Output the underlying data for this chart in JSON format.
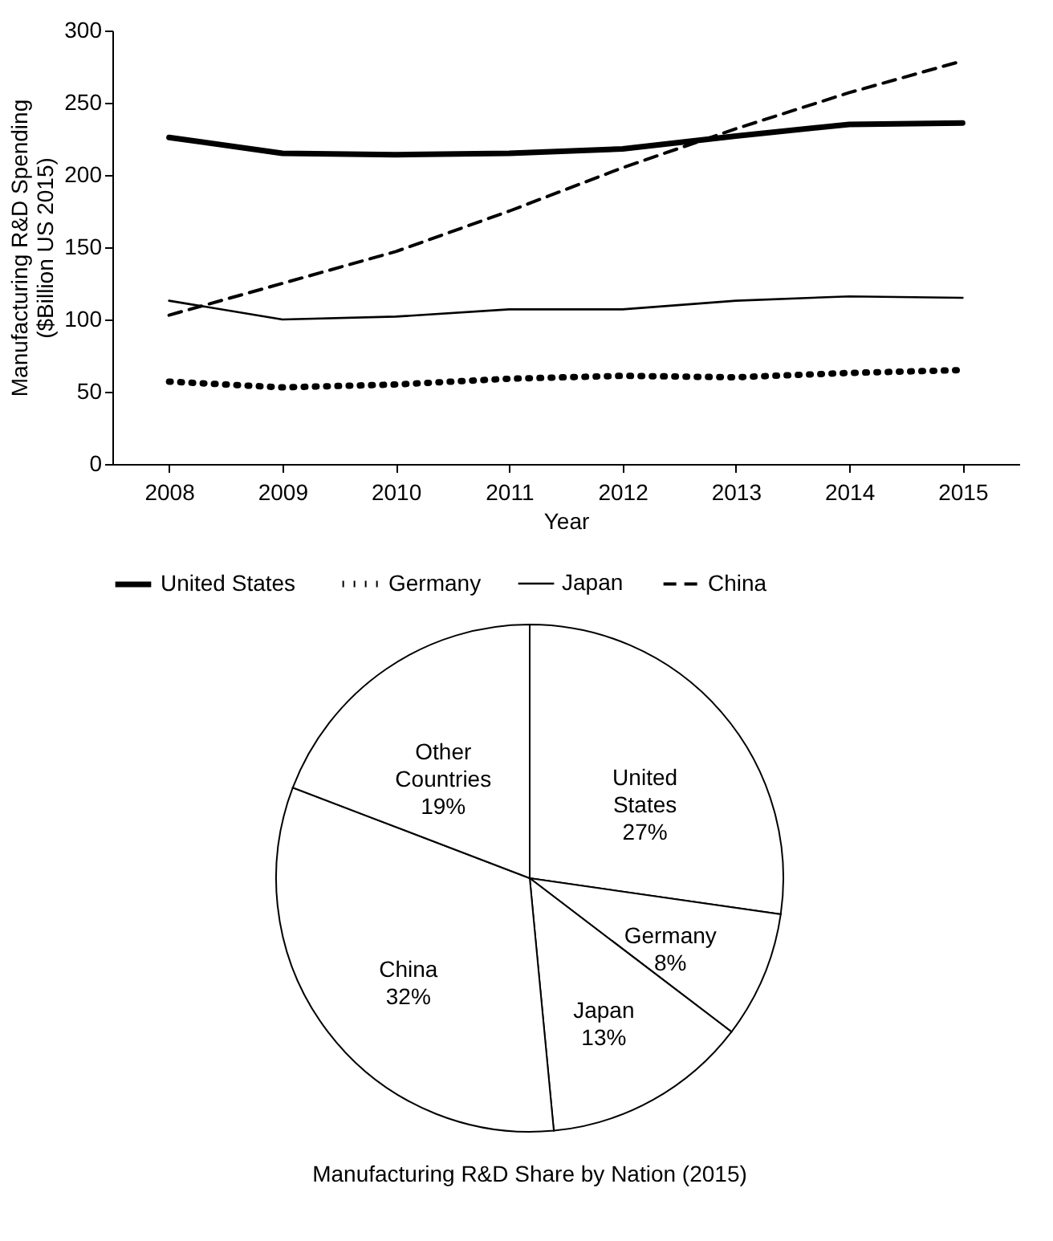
{
  "chart_data": [
    {
      "type": "line",
      "xlabel": "Year",
      "ylabel": "Manufacturing R&D Spending\n($Billion US 2015)",
      "categories": [
        "2008",
        "2009",
        "2010",
        "2011",
        "2012",
        "2013",
        "2014",
        "2015"
      ],
      "ylim": [
        0,
        300
      ],
      "yticks": [
        0,
        50,
        100,
        150,
        200,
        250,
        300
      ],
      "grid": false,
      "legend": "bottom",
      "marker": "none",
      "series": [
        {
          "name": "United States",
          "color": "#000000",
          "line_style": "solid",
          "values": [
            226,
            215,
            214,
            215,
            218,
            227,
            235,
            236
          ]
        },
        {
          "name": "Germany",
          "color": "#000000",
          "line_style": "dotted",
          "values": [
            57,
            53,
            55,
            59,
            61,
            60,
            63,
            65
          ]
        },
        {
          "name": "Japan",
          "color": "#000000",
          "line_style": "solid",
          "values": [
            113,
            100,
            102,
            107,
            107,
            113,
            116,
            115
          ]
        },
        {
          "name": "China",
          "color": "#000000",
          "line_style": "dashed",
          "values": [
            103,
            125,
            147,
            175,
            205,
            232,
            257,
            279
          ]
        }
      ]
    },
    {
      "type": "pie",
      "title": "Manufacturing R&D Share by Nation (2015)",
      "categories": [
        "United States",
        "Germany",
        "Japan",
        "China",
        "Other Countries"
      ],
      "values": [
        27,
        8,
        13,
        32,
        19
      ],
      "value_labels": [
        "27%",
        "8%",
        "13%",
        "32%",
        "19%"
      ],
      "colors": [
        "#ffffff",
        "#ffffff",
        "#ffffff",
        "#ffffff",
        "#ffffff"
      ]
    }
  ]
}
